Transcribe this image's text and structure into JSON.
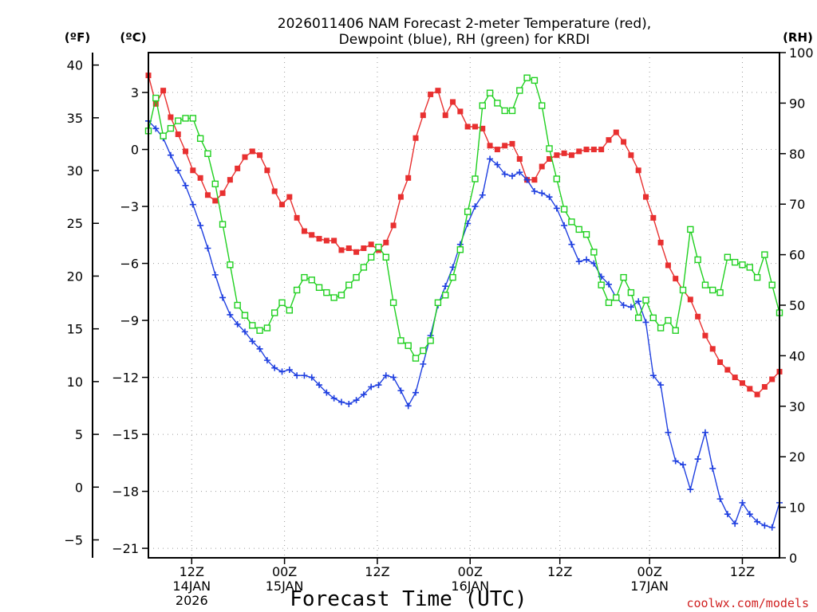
{
  "chart_data": {
    "type": "line",
    "title_line1": "2026011406 NAM Forecast 2-meter Temperature (red),",
    "title_line2": "Dewpoint (blue), RH (green) for KRDI",
    "xlabel": "Forecast Time (UTC)",
    "credit": "coolwx.com/models",
    "unit_labels": {
      "fahrenheit": "(ºF)",
      "celsius": "(ºC)",
      "rh": "(RH)"
    },
    "x_hours_range": [
      0,
      102
    ],
    "celsius_range": [
      -21.5,
      5.1
    ],
    "rh_range": [
      0,
      100
    ],
    "celsius_ticks": [
      {
        "value": 3,
        "label": "3"
      },
      {
        "value": 0,
        "label": "0"
      },
      {
        "value": -3,
        "label": "−3"
      },
      {
        "value": -6,
        "label": "−6"
      },
      {
        "value": -9,
        "label": "−9"
      },
      {
        "value": -12,
        "label": "−12"
      },
      {
        "value": -15,
        "label": "−15"
      },
      {
        "value": -18,
        "label": "−18"
      },
      {
        "value": -21,
        "label": "−21"
      }
    ],
    "fahrenheit_ticks": [
      {
        "value": 40,
        "label": "40"
      },
      {
        "value": 35,
        "label": "35"
      },
      {
        "value": 30,
        "label": "30"
      },
      {
        "value": 25,
        "label": "25"
      },
      {
        "value": 20,
        "label": "20"
      },
      {
        "value": 15,
        "label": "15"
      },
      {
        "value": 10,
        "label": "10"
      },
      {
        "value": 5,
        "label": "5"
      },
      {
        "value": 0,
        "label": "0"
      },
      {
        "value": -5,
        "label": "−5"
      }
    ],
    "rh_ticks": [
      {
        "value": 100,
        "label": "100"
      },
      {
        "value": 90,
        "label": "90"
      },
      {
        "value": 80,
        "label": "80"
      },
      {
        "value": 70,
        "label": "70"
      },
      {
        "value": 60,
        "label": "60"
      },
      {
        "value": 50,
        "label": "50"
      },
      {
        "value": 40,
        "label": "40"
      },
      {
        "value": 30,
        "label": "30"
      },
      {
        "value": 20,
        "label": "20"
      },
      {
        "value": 10,
        "label": "10"
      },
      {
        "value": 0,
        "label": "0"
      }
    ],
    "x_ticks": [
      {
        "hour": 7,
        "line1": "12Z",
        "line2": "14JAN",
        "line3": "2026"
      },
      {
        "hour": 22,
        "line1": "00Z",
        "line2": "15JAN",
        "line3": ""
      },
      {
        "hour": 37,
        "line1": "12Z",
        "line2": "",
        "line3": ""
      },
      {
        "hour": 52,
        "line1": "00Z",
        "line2": "16JAN",
        "line3": ""
      },
      {
        "hour": 66.5,
        "line1": "12Z",
        "line2": "",
        "line3": ""
      },
      {
        "hour": 81,
        "line1": "00Z",
        "line2": "17JAN",
        "line3": ""
      },
      {
        "hour": 96,
        "line1": "12Z",
        "line2": "",
        "line3": ""
      }
    ],
    "grid": true,
    "series": [
      {
        "name": "Temperature",
        "axis": "celsius",
        "color": "#e83030",
        "marker": "filled-square",
        "values": [
          [
            0,
            3.9
          ],
          [
            1.2,
            2.4
          ],
          [
            2.4,
            3.1
          ],
          [
            3.6,
            1.7
          ],
          [
            4.8,
            0.8
          ],
          [
            6,
            -0.1
          ],
          [
            7.2,
            -1.1
          ],
          [
            8.4,
            -1.5
          ],
          [
            9.6,
            -2.4
          ],
          [
            10.8,
            -2.7
          ],
          [
            12,
            -2.3
          ],
          [
            13.2,
            -1.6
          ],
          [
            14.4,
            -1.0
          ],
          [
            15.6,
            -0.4
          ],
          [
            16.8,
            -0.1
          ],
          [
            18,
            -0.3
          ],
          [
            19.2,
            -1.1
          ],
          [
            20.4,
            -2.2
          ],
          [
            21.6,
            -2.9
          ],
          [
            22.8,
            -2.5
          ],
          [
            24,
            -3.6
          ],
          [
            25.2,
            -4.3
          ],
          [
            26.4,
            -4.5
          ],
          [
            27.6,
            -4.7
          ],
          [
            28.8,
            -4.8
          ],
          [
            30,
            -4.8
          ],
          [
            31.2,
            -5.3
          ],
          [
            32.4,
            -5.2
          ],
          [
            33.6,
            -5.4
          ],
          [
            34.8,
            -5.2
          ],
          [
            36,
            -5.0
          ],
          [
            37.2,
            -5.3
          ],
          [
            38.4,
            -4.9
          ],
          [
            39.6,
            -4.0
          ],
          [
            40.8,
            -2.5
          ],
          [
            42,
            -1.5
          ],
          [
            43.2,
            0.6
          ],
          [
            44.4,
            1.8
          ],
          [
            45.6,
            2.9
          ],
          [
            46.8,
            3.1
          ],
          [
            48,
            1.8
          ],
          [
            49.2,
            2.5
          ],
          [
            50.4,
            2.0
          ],
          [
            51.6,
            1.2
          ],
          [
            52.8,
            1.2
          ],
          [
            54,
            1.1
          ],
          [
            55.2,
            0.2
          ],
          [
            56.4,
            0.0
          ],
          [
            57.6,
            0.2
          ],
          [
            58.8,
            0.3
          ],
          [
            60,
            -0.5
          ],
          [
            61.2,
            -1.6
          ],
          [
            62.4,
            -1.6
          ],
          [
            63.6,
            -0.9
          ],
          [
            64.8,
            -0.5
          ],
          [
            66,
            -0.3
          ],
          [
            67.2,
            -0.2
          ],
          [
            68.4,
            -0.3
          ],
          [
            69.6,
            -0.1
          ],
          [
            70.8,
            0.0
          ],
          [
            72,
            0.0
          ],
          [
            73.2,
            0.0
          ],
          [
            74.4,
            0.5
          ],
          [
            75.6,
            0.9
          ],
          [
            76.8,
            0.4
          ],
          [
            78,
            -0.3
          ],
          [
            79.2,
            -1.1
          ],
          [
            80.4,
            -2.5
          ],
          [
            81.6,
            -3.6
          ],
          [
            82.8,
            -4.9
          ],
          [
            84,
            -6.1
          ],
          [
            85.2,
            -6.8
          ],
          [
            86.4,
            -7.4
          ],
          [
            87.6,
            -7.9
          ],
          [
            88.8,
            -8.8
          ],
          [
            90,
            -9.8
          ],
          [
            91.2,
            -10.5
          ],
          [
            92.4,
            -11.2
          ],
          [
            93.6,
            -11.6
          ],
          [
            94.8,
            -12.0
          ],
          [
            96,
            -12.3
          ],
          [
            97.2,
            -12.6
          ],
          [
            98.4,
            -12.9
          ],
          [
            99.6,
            -12.5
          ],
          [
            100.8,
            -12.1
          ],
          [
            102,
            -11.7
          ]
        ]
      },
      {
        "name": "Dewpoint",
        "axis": "celsius",
        "color": "#2040e0",
        "marker": "plus",
        "values": [
          [
            0,
            1.5
          ],
          [
            1.2,
            1.1
          ],
          [
            2.4,
            0.6
          ],
          [
            3.6,
            -0.3
          ],
          [
            4.8,
            -1.1
          ],
          [
            6,
            -1.9
          ],
          [
            7.2,
            -2.9
          ],
          [
            8.4,
            -4.0
          ],
          [
            9.6,
            -5.2
          ],
          [
            10.8,
            -6.6
          ],
          [
            12,
            -7.8
          ],
          [
            13.2,
            -8.7
          ],
          [
            14.4,
            -9.2
          ],
          [
            15.6,
            -9.6
          ],
          [
            16.8,
            -10.1
          ],
          [
            18,
            -10.5
          ],
          [
            19.2,
            -11.1
          ],
          [
            20.4,
            -11.5
          ],
          [
            21.6,
            -11.7
          ],
          [
            22.8,
            -11.6
          ],
          [
            24,
            -11.9
          ],
          [
            25.2,
            -11.9
          ],
          [
            26.4,
            -12.0
          ],
          [
            27.6,
            -12.4
          ],
          [
            28.8,
            -12.8
          ],
          [
            30,
            -13.1
          ],
          [
            31.2,
            -13.3
          ],
          [
            32.4,
            -13.4
          ],
          [
            33.6,
            -13.2
          ],
          [
            34.8,
            -12.9
          ],
          [
            36,
            -12.5
          ],
          [
            37.2,
            -12.4
          ],
          [
            38.4,
            -11.9
          ],
          [
            39.6,
            -12.0
          ],
          [
            40.8,
            -12.7
          ],
          [
            42,
            -13.5
          ],
          [
            43.2,
            -12.8
          ],
          [
            44.4,
            -11.3
          ],
          [
            45.6,
            -9.8
          ],
          [
            46.8,
            -8.2
          ],
          [
            48,
            -7.2
          ],
          [
            49.2,
            -6.2
          ],
          [
            50.4,
            -5.0
          ],
          [
            51.6,
            -3.9
          ],
          [
            52.8,
            -3.0
          ],
          [
            54,
            -2.4
          ],
          [
            55.2,
            -0.5
          ],
          [
            56.4,
            -0.8
          ],
          [
            57.6,
            -1.3
          ],
          [
            58.8,
            -1.4
          ],
          [
            60,
            -1.2
          ],
          [
            61.2,
            -1.6
          ],
          [
            62.4,
            -2.2
          ],
          [
            63.6,
            -2.3
          ],
          [
            64.8,
            -2.5
          ],
          [
            66,
            -3.1
          ],
          [
            67.2,
            -4.0
          ],
          [
            68.4,
            -5.0
          ],
          [
            69.6,
            -5.9
          ],
          [
            70.8,
            -5.8
          ],
          [
            72,
            -6.0
          ],
          [
            73.2,
            -6.7
          ],
          [
            74.4,
            -7.1
          ],
          [
            75.6,
            -7.8
          ],
          [
            76.8,
            -8.2
          ],
          [
            78,
            -8.3
          ],
          [
            79.2,
            -8.0
          ],
          [
            80.4,
            -9.1
          ],
          [
            81.6,
            -11.9
          ],
          [
            82.8,
            -12.4
          ],
          [
            84,
            -14.9
          ],
          [
            85.2,
            -16.4
          ],
          [
            86.4,
            -16.6
          ],
          [
            87.6,
            -17.9
          ],
          [
            88.8,
            -16.3
          ],
          [
            90,
            -14.9
          ],
          [
            91.2,
            -16.8
          ],
          [
            92.4,
            -18.4
          ],
          [
            93.6,
            -19.2
          ],
          [
            94.8,
            -19.7
          ],
          [
            96,
            -18.6
          ],
          [
            97.2,
            -19.2
          ],
          [
            98.4,
            -19.6
          ],
          [
            99.6,
            -19.8
          ],
          [
            100.8,
            -19.9
          ],
          [
            102,
            -18.6
          ]
        ]
      },
      {
        "name": "RH",
        "axis": "rh",
        "color": "#20d020",
        "marker": "open-square",
        "values": [
          [
            0,
            84.5
          ],
          [
            1.2,
            91
          ],
          [
            2.4,
            83.5
          ],
          [
            3.6,
            85
          ],
          [
            4.8,
            86.5
          ],
          [
            6,
            87
          ],
          [
            7.2,
            87
          ],
          [
            8.4,
            83
          ],
          [
            9.6,
            80
          ],
          [
            10.8,
            74
          ],
          [
            12,
            66
          ],
          [
            13.2,
            58
          ],
          [
            14.4,
            50
          ],
          [
            15.6,
            48
          ],
          [
            16.8,
            46
          ],
          [
            18,
            45
          ],
          [
            19.2,
            45.5
          ],
          [
            20.4,
            48.5
          ],
          [
            21.6,
            50.5
          ],
          [
            22.8,
            49
          ],
          [
            24,
            53
          ],
          [
            25.2,
            55.5
          ],
          [
            26.4,
            55
          ],
          [
            27.6,
            53.5
          ],
          [
            28.8,
            52.5
          ],
          [
            30,
            51.5
          ],
          [
            31.2,
            52
          ],
          [
            32.4,
            54
          ],
          [
            33.6,
            55.5
          ],
          [
            34.8,
            57.5
          ],
          [
            36,
            59.5
          ],
          [
            37.2,
            61.5
          ],
          [
            38.4,
            59.5
          ],
          [
            39.6,
            50.5
          ],
          [
            40.8,
            43
          ],
          [
            42,
            42
          ],
          [
            43.2,
            39.5
          ],
          [
            44.4,
            41
          ],
          [
            45.6,
            43
          ],
          [
            46.8,
            50.5
          ],
          [
            48,
            52
          ],
          [
            49.2,
            55.5
          ],
          [
            50.4,
            61
          ],
          [
            51.6,
            68.5
          ],
          [
            52.8,
            75
          ],
          [
            54,
            89.5
          ],
          [
            55.2,
            92
          ],
          [
            56.4,
            90
          ],
          [
            57.6,
            88.5
          ],
          [
            58.8,
            88.5
          ],
          [
            60,
            92.5
          ],
          [
            61.2,
            95
          ],
          [
            62.4,
            94.5
          ],
          [
            63.6,
            89.5
          ],
          [
            64.8,
            81
          ],
          [
            66,
            75
          ],
          [
            67.2,
            69
          ],
          [
            68.4,
            66.5
          ],
          [
            69.6,
            65
          ],
          [
            70.8,
            64
          ],
          [
            72,
            60.5
          ],
          [
            73.2,
            54
          ],
          [
            74.4,
            50.5
          ],
          [
            75.6,
            51.5
          ],
          [
            76.8,
            55.5
          ],
          [
            78,
            52.5
          ],
          [
            79.2,
            47.5
          ],
          [
            80.4,
            51
          ],
          [
            81.6,
            47.5
          ],
          [
            82.8,
            45.5
          ],
          [
            84,
            47
          ],
          [
            85.2,
            45
          ],
          [
            86.4,
            53
          ],
          [
            87.6,
            65
          ],
          [
            88.8,
            59
          ],
          [
            90,
            54
          ],
          [
            91.2,
            53
          ],
          [
            92.4,
            52.5
          ],
          [
            93.6,
            59.5
          ],
          [
            94.8,
            58.5
          ],
          [
            96,
            58
          ],
          [
            97.2,
            57.5
          ],
          [
            98.4,
            55.5
          ],
          [
            99.6,
            60
          ],
          [
            100.8,
            54
          ],
          [
            102,
            48.5
          ]
        ]
      }
    ]
  }
}
